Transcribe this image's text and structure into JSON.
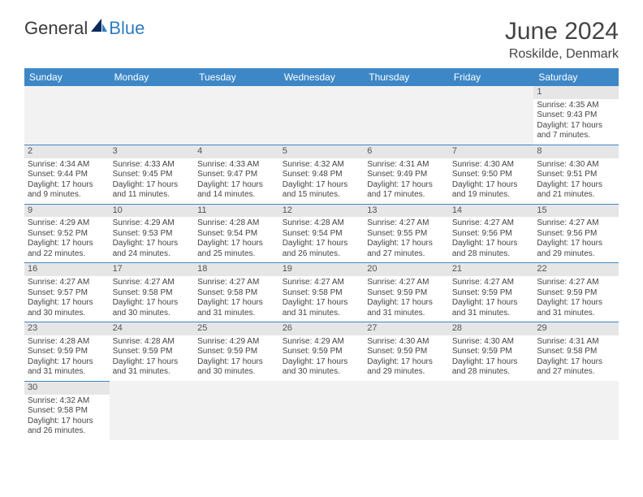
{
  "brand": {
    "general": "General",
    "blue": "Blue"
  },
  "title": "June 2024",
  "location": "Roskilde, Denmark",
  "colors": {
    "header_bg": "#3d87c7",
    "header_fg": "#ffffff",
    "daynum_bg": "#e6e6e6",
    "border": "#3d87c7",
    "text": "#444444",
    "logo_blue": "#2f7cc0",
    "logo_dark_blue": "#0a2a5c"
  },
  "day_headers": [
    "Sunday",
    "Monday",
    "Tuesday",
    "Wednesday",
    "Thursday",
    "Friday",
    "Saturday"
  ],
  "weeks": [
    [
      null,
      null,
      null,
      null,
      null,
      null,
      {
        "n": "1",
        "sr": "Sunrise: 4:35 AM",
        "ss": "Sunset: 9:43 PM",
        "d1": "Daylight: 17 hours",
        "d2": "and 7 minutes."
      }
    ],
    [
      {
        "n": "2",
        "sr": "Sunrise: 4:34 AM",
        "ss": "Sunset: 9:44 PM",
        "d1": "Daylight: 17 hours",
        "d2": "and 9 minutes."
      },
      {
        "n": "3",
        "sr": "Sunrise: 4:33 AM",
        "ss": "Sunset: 9:45 PM",
        "d1": "Daylight: 17 hours",
        "d2": "and 11 minutes."
      },
      {
        "n": "4",
        "sr": "Sunrise: 4:33 AM",
        "ss": "Sunset: 9:47 PM",
        "d1": "Daylight: 17 hours",
        "d2": "and 14 minutes."
      },
      {
        "n": "5",
        "sr": "Sunrise: 4:32 AM",
        "ss": "Sunset: 9:48 PM",
        "d1": "Daylight: 17 hours",
        "d2": "and 15 minutes."
      },
      {
        "n": "6",
        "sr": "Sunrise: 4:31 AM",
        "ss": "Sunset: 9:49 PM",
        "d1": "Daylight: 17 hours",
        "d2": "and 17 minutes."
      },
      {
        "n": "7",
        "sr": "Sunrise: 4:30 AM",
        "ss": "Sunset: 9:50 PM",
        "d1": "Daylight: 17 hours",
        "d2": "and 19 minutes."
      },
      {
        "n": "8",
        "sr": "Sunrise: 4:30 AM",
        "ss": "Sunset: 9:51 PM",
        "d1": "Daylight: 17 hours",
        "d2": "and 21 minutes."
      }
    ],
    [
      {
        "n": "9",
        "sr": "Sunrise: 4:29 AM",
        "ss": "Sunset: 9:52 PM",
        "d1": "Daylight: 17 hours",
        "d2": "and 22 minutes."
      },
      {
        "n": "10",
        "sr": "Sunrise: 4:29 AM",
        "ss": "Sunset: 9:53 PM",
        "d1": "Daylight: 17 hours",
        "d2": "and 24 minutes."
      },
      {
        "n": "11",
        "sr": "Sunrise: 4:28 AM",
        "ss": "Sunset: 9:54 PM",
        "d1": "Daylight: 17 hours",
        "d2": "and 25 minutes."
      },
      {
        "n": "12",
        "sr": "Sunrise: 4:28 AM",
        "ss": "Sunset: 9:54 PM",
        "d1": "Daylight: 17 hours",
        "d2": "and 26 minutes."
      },
      {
        "n": "13",
        "sr": "Sunrise: 4:27 AM",
        "ss": "Sunset: 9:55 PM",
        "d1": "Daylight: 17 hours",
        "d2": "and 27 minutes."
      },
      {
        "n": "14",
        "sr": "Sunrise: 4:27 AM",
        "ss": "Sunset: 9:56 PM",
        "d1": "Daylight: 17 hours",
        "d2": "and 28 minutes."
      },
      {
        "n": "15",
        "sr": "Sunrise: 4:27 AM",
        "ss": "Sunset: 9:56 PM",
        "d1": "Daylight: 17 hours",
        "d2": "and 29 minutes."
      }
    ],
    [
      {
        "n": "16",
        "sr": "Sunrise: 4:27 AM",
        "ss": "Sunset: 9:57 PM",
        "d1": "Daylight: 17 hours",
        "d2": "and 30 minutes."
      },
      {
        "n": "17",
        "sr": "Sunrise: 4:27 AM",
        "ss": "Sunset: 9:58 PM",
        "d1": "Daylight: 17 hours",
        "d2": "and 30 minutes."
      },
      {
        "n": "18",
        "sr": "Sunrise: 4:27 AM",
        "ss": "Sunset: 9:58 PM",
        "d1": "Daylight: 17 hours",
        "d2": "and 31 minutes."
      },
      {
        "n": "19",
        "sr": "Sunrise: 4:27 AM",
        "ss": "Sunset: 9:58 PM",
        "d1": "Daylight: 17 hours",
        "d2": "and 31 minutes."
      },
      {
        "n": "20",
        "sr": "Sunrise: 4:27 AM",
        "ss": "Sunset: 9:59 PM",
        "d1": "Daylight: 17 hours",
        "d2": "and 31 minutes."
      },
      {
        "n": "21",
        "sr": "Sunrise: 4:27 AM",
        "ss": "Sunset: 9:59 PM",
        "d1": "Daylight: 17 hours",
        "d2": "and 31 minutes."
      },
      {
        "n": "22",
        "sr": "Sunrise: 4:27 AM",
        "ss": "Sunset: 9:59 PM",
        "d1": "Daylight: 17 hours",
        "d2": "and 31 minutes."
      }
    ],
    [
      {
        "n": "23",
        "sr": "Sunrise: 4:28 AM",
        "ss": "Sunset: 9:59 PM",
        "d1": "Daylight: 17 hours",
        "d2": "and 31 minutes."
      },
      {
        "n": "24",
        "sr": "Sunrise: 4:28 AM",
        "ss": "Sunset: 9:59 PM",
        "d1": "Daylight: 17 hours",
        "d2": "and 31 minutes."
      },
      {
        "n": "25",
        "sr": "Sunrise: 4:29 AM",
        "ss": "Sunset: 9:59 PM",
        "d1": "Daylight: 17 hours",
        "d2": "and 30 minutes."
      },
      {
        "n": "26",
        "sr": "Sunrise: 4:29 AM",
        "ss": "Sunset: 9:59 PM",
        "d1": "Daylight: 17 hours",
        "d2": "and 30 minutes."
      },
      {
        "n": "27",
        "sr": "Sunrise: 4:30 AM",
        "ss": "Sunset: 9:59 PM",
        "d1": "Daylight: 17 hours",
        "d2": "and 29 minutes."
      },
      {
        "n": "28",
        "sr": "Sunrise: 4:30 AM",
        "ss": "Sunset: 9:59 PM",
        "d1": "Daylight: 17 hours",
        "d2": "and 28 minutes."
      },
      {
        "n": "29",
        "sr": "Sunrise: 4:31 AM",
        "ss": "Sunset: 9:58 PM",
        "d1": "Daylight: 17 hours",
        "d2": "and 27 minutes."
      }
    ],
    [
      {
        "n": "30",
        "sr": "Sunrise: 4:32 AM",
        "ss": "Sunset: 9:58 PM",
        "d1": "Daylight: 17 hours",
        "d2": "and 26 minutes."
      },
      null,
      null,
      null,
      null,
      null,
      null
    ]
  ]
}
